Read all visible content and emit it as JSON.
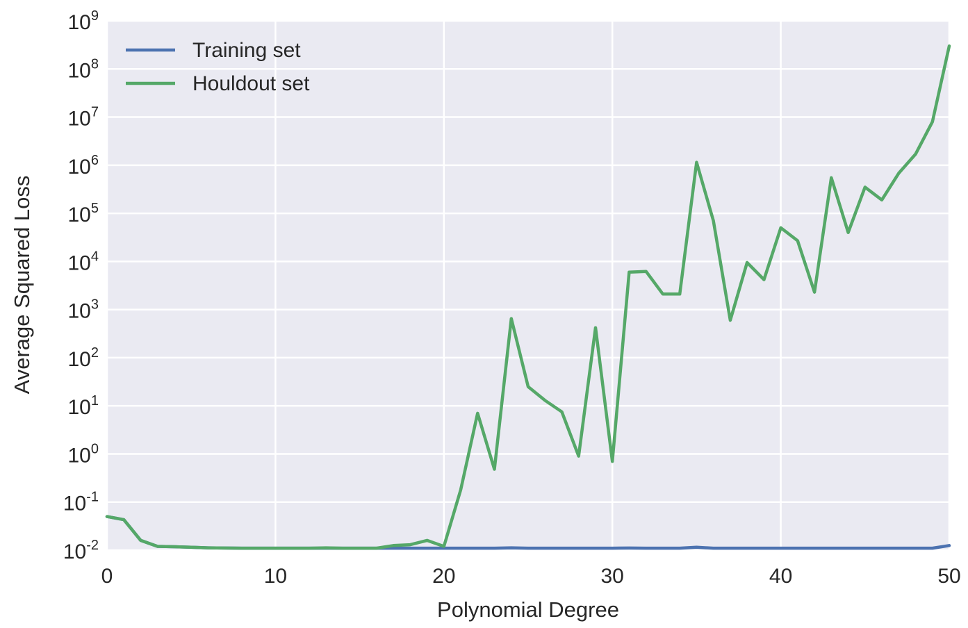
{
  "chart_data": {
    "type": "line",
    "title": "",
    "xlabel": "Polynomial Degree",
    "ylabel": "Average Squared Loss",
    "xlim": [
      0,
      50
    ],
    "ylim": [
      0.01,
      1000000000
    ],
    "yscale": "log",
    "xticks": [
      0,
      10,
      20,
      30,
      40,
      50
    ],
    "xtick_labels": [
      "0",
      "10",
      "20",
      "30",
      "40",
      "50"
    ],
    "yticks": [
      {
        "base": "10",
        "exp": "-2",
        "value": 0.01
      },
      {
        "base": "10",
        "exp": "-1",
        "value": 0.1
      },
      {
        "base": "10",
        "exp": "0",
        "value": 1
      },
      {
        "base": "10",
        "exp": "1",
        "value": 10
      },
      {
        "base": "10",
        "exp": "2",
        "value": 100
      },
      {
        "base": "10",
        "exp": "3",
        "value": 1000
      },
      {
        "base": "10",
        "exp": "4",
        "value": 10000
      },
      {
        "base": "10",
        "exp": "5",
        "value": 100000
      },
      {
        "base": "10",
        "exp": "6",
        "value": 1000000
      },
      {
        "base": "10",
        "exp": "7",
        "value": 10000000
      },
      {
        "base": "10",
        "exp": "8",
        "value": 100000000
      },
      {
        "base": "10",
        "exp": "9",
        "value": 1000000000
      }
    ],
    "grid": true,
    "legend_position": "top-left",
    "background_color": "#eaeaf2",
    "grid_color": "#ffffff",
    "x": [
      0,
      1,
      2,
      3,
      4,
      5,
      6,
      7,
      8,
      9,
      10,
      11,
      12,
      13,
      14,
      15,
      16,
      17,
      18,
      19,
      20,
      21,
      22,
      23,
      24,
      25,
      26,
      27,
      28,
      29,
      30,
      31,
      32,
      33,
      34,
      35,
      36,
      37,
      38,
      39,
      40,
      41,
      42,
      43,
      44,
      45,
      46,
      47,
      48,
      49,
      50
    ],
    "series": [
      {
        "name": "Training set",
        "color": "#4c72b0",
        "values": [
          0.05,
          0.043,
          0.016,
          0.012,
          0.0118,
          0.0115,
          0.0112,
          0.0111,
          0.011,
          0.011,
          0.011,
          0.011,
          0.011,
          0.011,
          0.011,
          0.011,
          0.011,
          0.011,
          0.011,
          0.011,
          0.011,
          0.011,
          0.011,
          0.011,
          0.0112,
          0.011,
          0.011,
          0.011,
          0.011,
          0.011,
          0.011,
          0.0111,
          0.011,
          0.011,
          0.011,
          0.0115,
          0.011,
          0.011,
          0.011,
          0.011,
          0.011,
          0.011,
          0.011,
          0.011,
          0.011,
          0.011,
          0.011,
          0.011,
          0.011,
          0.011,
          0.0125
        ]
      },
      {
        "name": "Houldout set",
        "color": "#55a868",
        "values": [
          0.05,
          0.043,
          0.016,
          0.012,
          0.0118,
          0.0115,
          0.0112,
          0.0111,
          0.011,
          0.011,
          0.011,
          0.011,
          0.011,
          0.0112,
          0.011,
          0.011,
          0.011,
          0.0125,
          0.013,
          0.016,
          0.012,
          0.18,
          7,
          0.48,
          650,
          25,
          13,
          7.5,
          0.9,
          420,
          0.7,
          6000,
          6200,
          2100,
          2100,
          1150000,
          70000,
          600,
          9500,
          4200,
          50000,
          27000,
          2300,
          550000,
          40000,
          350000,
          190000,
          680000,
          1700000,
          8000000,
          300000000
        ]
      }
    ]
  }
}
